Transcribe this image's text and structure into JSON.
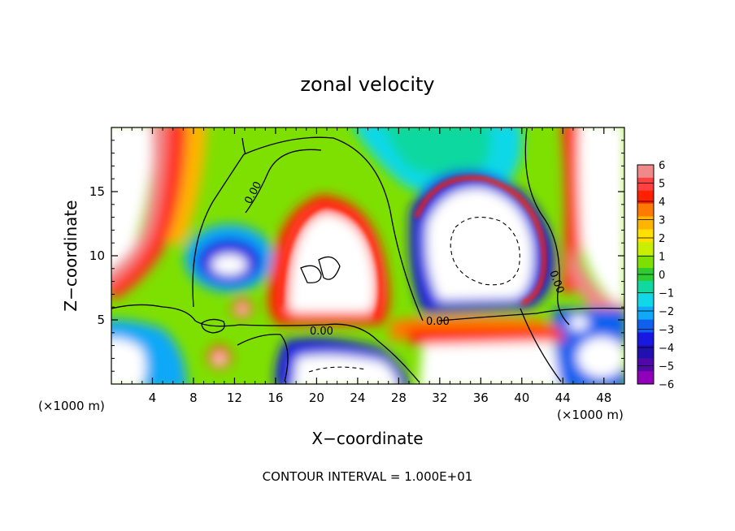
{
  "chart_data": {
    "type": "heatmap",
    "title": "zonal velocity",
    "xlabel": "X−coordinate",
    "ylabel": "Z−coordinate",
    "x_unit_left": "(×1000 m)",
    "x_unit_right": "(×1000 m)",
    "footer": "CONTOUR INTERVAL = 1.000E+01",
    "xlim": [
      0,
      50
    ],
    "ylim": [
      0,
      20
    ],
    "x_ticks": [
      4,
      8,
      12,
      16,
      20,
      24,
      28,
      32,
      36,
      40,
      44,
      48
    ],
    "y_ticks": [
      5,
      10,
      15
    ],
    "colorbar": {
      "min": -6,
      "max": 6,
      "labels": [
        "6",
        "5",
        "4",
        "3",
        "2",
        "1",
        "0",
        "−1",
        "−2",
        "−3",
        "−4",
        "−5",
        "−6"
      ],
      "colors": [
        "#f08a8a",
        "#ff4040",
        "#ff2000",
        "#ff7a00",
        "#ffb400",
        "#ffe000",
        "#c8ef00",
        "#7ee000",
        "#2ecc32",
        "#10d8a0",
        "#10d8e8",
        "#10a8f8",
        "#1060f0",
        "#1818e0",
        "#2010b0",
        "#5008a8",
        "#9000b8"
      ]
    },
    "contour_label": "0.00",
    "grid": false,
    "legend": "colorbar-right"
  }
}
